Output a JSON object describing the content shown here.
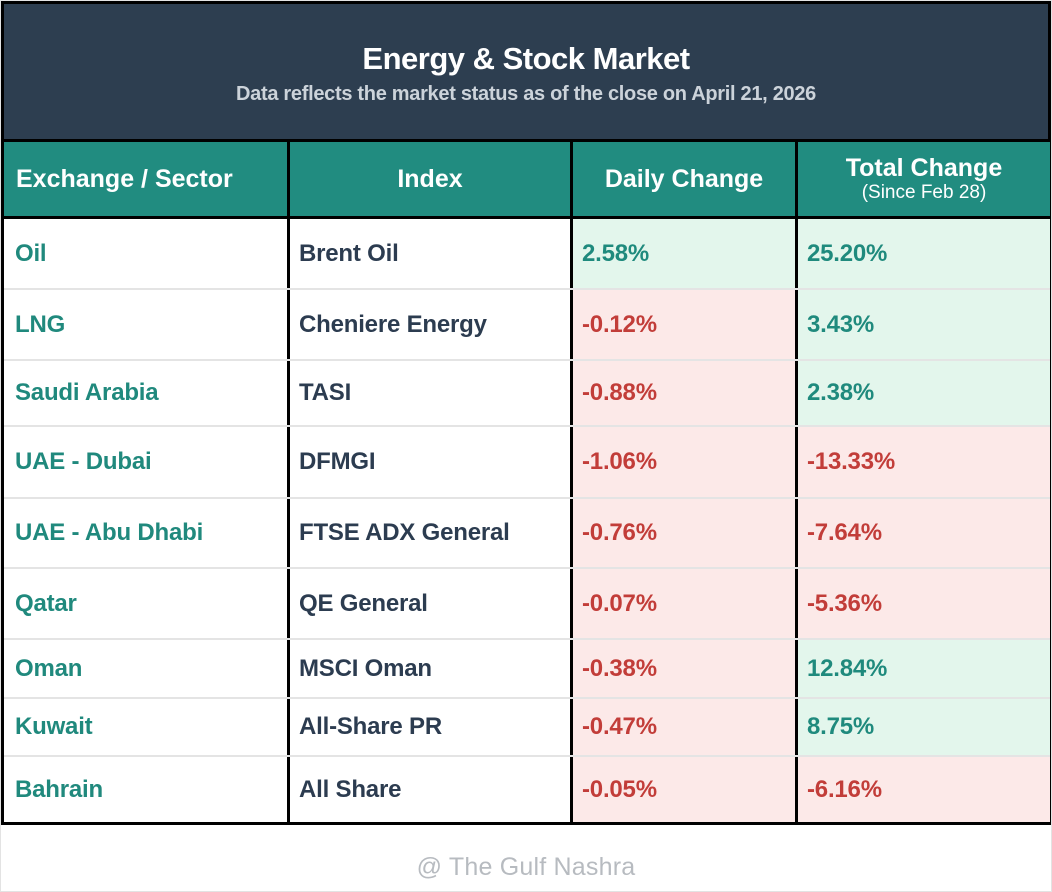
{
  "banner": {
    "title": "Energy & Stock Market",
    "subtitle": "Data reflects the market status as of the close on April 21, 2026"
  },
  "table_header": {
    "exchange_sector": "Exchange / Sector",
    "index": "Index",
    "daily_change": "Daily Change",
    "total_change": "Total Change",
    "total_change_note": "(Since Feb 28)"
  },
  "chart_data": {
    "type": "table",
    "title": "Energy & Stock Market",
    "subtitle": "Data reflects the market status as of the close on April 21, 2026",
    "columns": [
      "Exchange / Sector",
      "Index",
      "Daily Change",
      "Total Change (Since Feb 28)"
    ],
    "rows": [
      {
        "exchange_sector": "Oil",
        "index": "Brent Oil",
        "daily_change": "2.58%",
        "daily_value": 2.58,
        "total_change": "25.20%",
        "total_value": 25.2
      },
      {
        "exchange_sector": "LNG",
        "index": "Cheniere Energy",
        "daily_change": "-0.12%",
        "daily_value": -0.12,
        "total_change": "3.43%",
        "total_value": 3.43
      },
      {
        "exchange_sector": "Saudi Arabia",
        "index": "TASI",
        "daily_change": "-0.88%",
        "daily_value": -0.88,
        "total_change": "2.38%",
        "total_value": 2.38
      },
      {
        "exchange_sector": "UAE - Dubai",
        "index": "DFMGI",
        "daily_change": "-1.06%",
        "daily_value": -1.06,
        "total_change": "-13.33%",
        "total_value": -13.33
      },
      {
        "exchange_sector": "UAE - Abu Dhabi",
        "index": "FTSE ADX General",
        "daily_change": "-0.76%",
        "daily_value": -0.76,
        "total_change": "-7.64%",
        "total_value": -7.64
      },
      {
        "exchange_sector": "Qatar",
        "index": "QE General",
        "daily_change": "-0.07%",
        "daily_value": -0.07,
        "total_change": "-5.36%",
        "total_value": -5.36
      },
      {
        "exchange_sector": "Oman",
        "index": "MSCI Oman",
        "daily_change": "-0.38%",
        "daily_value": -0.38,
        "total_change": "12.84%",
        "total_value": 12.84
      },
      {
        "exchange_sector": "Kuwait",
        "index": "All-Share PR",
        "daily_change": "-0.47%",
        "daily_value": -0.47,
        "total_change": "8.75%",
        "total_value": 8.75
      },
      {
        "exchange_sector": "Bahrain",
        "index": "All Share",
        "daily_change": "-0.05%",
        "daily_value": -0.05,
        "total_change": "-6.16%",
        "total_value": -6.16
      }
    ]
  },
  "footer": {
    "credit": "@ The Gulf Nashra"
  },
  "colors": {
    "banner_bg": "#2d3e50",
    "header_bg": "#218c80",
    "positive_text": "#1f8a7d",
    "positive_bg": "#e3f6ec",
    "negative_text": "#c23d39",
    "negative_bg": "#fce9e8",
    "index_text": "#2c3c50",
    "border": "#000000"
  }
}
